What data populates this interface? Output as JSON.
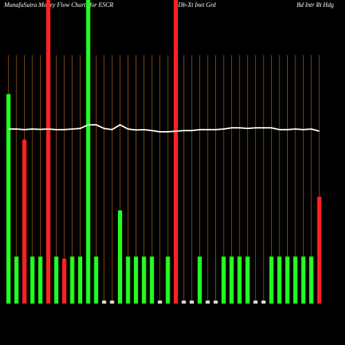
{
  "chart_data": {
    "type": "bar",
    "title": "MunafaSutra Money Flow Charts for ESCR",
    "subtitle": "Db-Xt Inet Grd",
    "title_right": "Bd Intr Rt Hdg",
    "categories": [
      null,
      null,
      null,
      null,
      null,
      null,
      null,
      null,
      null,
      null,
      null,
      null,
      null,
      null,
      null,
      null,
      null,
      null,
      null,
      null,
      null,
      null,
      null,
      null,
      null,
      null,
      null,
      null,
      null,
      null,
      null,
      null,
      null,
      null,
      null,
      null,
      null,
      null,
      null,
      null
    ],
    "series": [
      {
        "type": "bar",
        "values": [
          69,
          15.5,
          54,
          15.5,
          15.5,
          100,
          15.5,
          14.8,
          15.5,
          15.5,
          100,
          15.5,
          1,
          1,
          30.7,
          15.5,
          15.5,
          15.5,
          15.5,
          1,
          15.5,
          100,
          1,
          1,
          15.5,
          1,
          1,
          15.5,
          15.5,
          15.5,
          15.5,
          1,
          1,
          15.5,
          15.5,
          15.5,
          15.5,
          15.5,
          15.5,
          35.2
        ],
        "colors": [
          "#22ff22",
          "#22ff22",
          "#ff2222",
          "#22ff22",
          "#22ff22",
          "#ff2222",
          "#22ff22",
          "#ff2222",
          "#22ff22",
          "#22ff22",
          "#22ff22",
          "#22ff22",
          "#dddddd",
          "#dddddd",
          "#22ff22",
          "#22ff22",
          "#22ff22",
          "#22ff22",
          "#22ff22",
          "#dddddd",
          "#22ff22",
          "#ff2222",
          "#dddddd",
          "#dddddd",
          "#22ff22",
          "#dddddd",
          "#dddddd",
          "#22ff22",
          "#22ff22",
          "#22ff22",
          "#22ff22",
          "#dddddd",
          "#dddddd",
          "#22ff22",
          "#22ff22",
          "#22ff22",
          "#22ff22",
          "#22ff22",
          "#22ff22",
          "#ff2222"
        ]
      },
      {
        "type": "line",
        "color": "#ffffff",
        "values": [
          57.5,
          57.5,
          57.3,
          57.5,
          57.4,
          57.5,
          57.3,
          57.3,
          57.5,
          57.7,
          58.9,
          58.9,
          57.7,
          57.3,
          58.9,
          57.5,
          57.2,
          57.3,
          57.0,
          56.6,
          56.6,
          56.8,
          57.0,
          57.0,
          57.3,
          57.3,
          57.3,
          57.5,
          57.9,
          57.9,
          57.7,
          57.9,
          57.9,
          57.9,
          57.3,
          57.3,
          57.5,
          57.3,
          57.5,
          56.8
        ]
      }
    ],
    "ylim": [
      0,
      100
    ]
  }
}
